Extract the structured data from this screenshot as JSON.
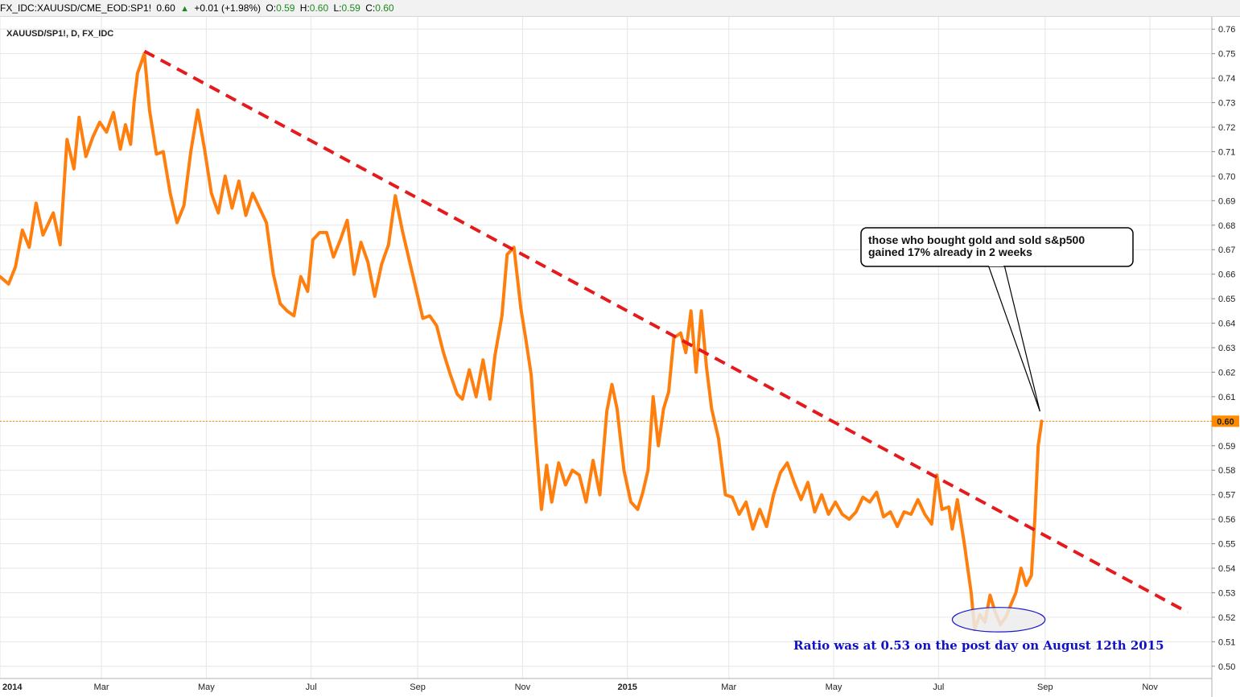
{
  "header": {
    "symbol": "FX_IDC:XAUUSD/CME_EOD:SP1!",
    "last": "0.60",
    "change": "+0.01 (+1.98%)",
    "o_label": "O:",
    "o_value": "0.59",
    "h_label": "H:",
    "h_value": "0.60",
    "l_label": "L:",
    "l_value": "0.59",
    "c_label": "C:",
    "c_value": "0.60"
  },
  "colors": {
    "series": "#ff7f0e",
    "trendline": "#e41a1c",
    "last_price_line": "#ff8c00",
    "grid": "#e6e6e6",
    "annotation_text": "#1010c8",
    "ellipse_stroke": "#1a1acc",
    "ellipse_fill": "#ececec"
  },
  "chart_data": {
    "type": "line",
    "title": "XAUUSD/SP1!, D, FX_IDC",
    "x_ticks": [
      "2014",
      "Mar",
      "May",
      "Jul",
      "Sep",
      "Nov",
      "2015",
      "Mar",
      "May",
      "Jul",
      "Sep",
      "Nov"
    ],
    "x_range": [
      "2014-01-01",
      "2015-12-07"
    ],
    "y_ticks": [
      "0.76",
      "0.75",
      "0.74",
      "0.73",
      "0.72",
      "0.71",
      "0.70",
      "0.69",
      "0.68",
      "0.67",
      "0.66",
      "0.65",
      "0.64",
      "0.63",
      "0.62",
      "0.61",
      "0.60",
      "0.59",
      "0.58",
      "0.57",
      "0.56",
      "0.55",
      "0.54",
      "0.53",
      "0.52",
      "0.51",
      "0.50"
    ],
    "y_range": [
      0.495,
      0.765
    ],
    "last_value": 0.6,
    "last_value_label": "0.60",
    "grid": true,
    "series": [
      {
        "values": [
          [
            "2014-01-01",
            0.659
          ],
          [
            "2014-01-06",
            0.656
          ],
          [
            "2014-01-10",
            0.663
          ],
          [
            "2014-01-14",
            0.678
          ],
          [
            "2014-01-18",
            0.671
          ],
          [
            "2014-01-22",
            0.689
          ],
          [
            "2014-01-26",
            0.676
          ],
          [
            "2014-02-01",
            0.685
          ],
          [
            "2014-02-05",
            0.672
          ],
          [
            "2014-02-09",
            0.715
          ],
          [
            "2014-02-13",
            0.703
          ],
          [
            "2014-02-16",
            0.724
          ],
          [
            "2014-02-20",
            0.708
          ],
          [
            "2014-02-24",
            0.716
          ],
          [
            "2014-02-28",
            0.722
          ],
          [
            "2014-03-04",
            0.718
          ],
          [
            "2014-03-08",
            0.726
          ],
          [
            "2014-03-12",
            0.711
          ],
          [
            "2014-03-15",
            0.721
          ],
          [
            "2014-03-18",
            0.713
          ],
          [
            "2014-03-20",
            0.73
          ],
          [
            "2014-03-22",
            0.742
          ],
          [
            "2014-03-24",
            0.746
          ],
          [
            "2014-03-26",
            0.75
          ],
          [
            "2014-03-29",
            0.727
          ],
          [
            "2014-04-02",
            0.709
          ],
          [
            "2014-04-06",
            0.71
          ],
          [
            "2014-04-10",
            0.693
          ],
          [
            "2014-04-14",
            0.681
          ],
          [
            "2014-04-18",
            0.688
          ],
          [
            "2014-04-22",
            0.71
          ],
          [
            "2014-04-26",
            0.727
          ],
          [
            "2014-04-30",
            0.711
          ],
          [
            "2014-05-04",
            0.693
          ],
          [
            "2014-05-08",
            0.685
          ],
          [
            "2014-05-12",
            0.7
          ],
          [
            "2014-05-16",
            0.687
          ],
          [
            "2014-05-20",
            0.698
          ],
          [
            "2014-05-24",
            0.684
          ],
          [
            "2014-05-28",
            0.693
          ],
          [
            "2014-06-01",
            0.687
          ],
          [
            "2014-06-05",
            0.681
          ],
          [
            "2014-06-09",
            0.66
          ],
          [
            "2014-06-13",
            0.648
          ],
          [
            "2014-06-17",
            0.645
          ],
          [
            "2014-06-21",
            0.643
          ],
          [
            "2014-06-25",
            0.659
          ],
          [
            "2014-06-29",
            0.653
          ],
          [
            "2014-07-02",
            0.674
          ],
          [
            "2014-07-06",
            0.677
          ],
          [
            "2014-07-10",
            0.677
          ],
          [
            "2014-07-14",
            0.667
          ],
          [
            "2014-07-18",
            0.674
          ],
          [
            "2014-07-22",
            0.682
          ],
          [
            "2014-07-26",
            0.66
          ],
          [
            "2014-07-30",
            0.673
          ],
          [
            "2014-08-03",
            0.665
          ],
          [
            "2014-08-07",
            0.651
          ],
          [
            "2014-08-11",
            0.664
          ],
          [
            "2014-08-15",
            0.672
          ],
          [
            "2014-08-19",
            0.692
          ],
          [
            "2014-08-23",
            0.678
          ],
          [
            "2014-08-27",
            0.666
          ],
          [
            "2014-08-31",
            0.654
          ],
          [
            "2014-09-04",
            0.642
          ],
          [
            "2014-09-08",
            0.643
          ],
          [
            "2014-09-12",
            0.639
          ],
          [
            "2014-09-16",
            0.628
          ],
          [
            "2014-09-20",
            0.619
          ],
          [
            "2014-09-24",
            0.611
          ],
          [
            "2014-09-27",
            0.609
          ],
          [
            "2014-10-01",
            0.621
          ],
          [
            "2014-10-05",
            0.61
          ],
          [
            "2014-10-09",
            0.625
          ],
          [
            "2014-10-13",
            0.609
          ],
          [
            "2014-10-16",
            0.627
          ],
          [
            "2014-10-20",
            0.643
          ],
          [
            "2014-10-23",
            0.668
          ],
          [
            "2014-10-27",
            0.671
          ],
          [
            "2014-10-31",
            0.646
          ],
          [
            "2014-11-03",
            0.633
          ],
          [
            "2014-11-06",
            0.619
          ],
          [
            "2014-11-09",
            0.59
          ],
          [
            "2014-11-12",
            0.564
          ],
          [
            "2014-11-15",
            0.582
          ],
          [
            "2014-11-18",
            0.567
          ],
          [
            "2014-11-22",
            0.583
          ],
          [
            "2014-11-26",
            0.574
          ],
          [
            "2014-11-30",
            0.58
          ],
          [
            "2014-12-04",
            0.578
          ],
          [
            "2014-12-08",
            0.567
          ],
          [
            "2014-12-12",
            0.584
          ],
          [
            "2014-12-16",
            0.57
          ],
          [
            "2014-12-20",
            0.604
          ],
          [
            "2014-12-23",
            0.615
          ],
          [
            "2014-12-26",
            0.605
          ],
          [
            "2014-12-30",
            0.58
          ],
          [
            "2015-01-03",
            0.567
          ],
          [
            "2015-01-07",
            0.564
          ],
          [
            "2015-01-10",
            0.571
          ],
          [
            "2015-01-13",
            0.58
          ],
          [
            "2015-01-16",
            0.61
          ],
          [
            "2015-01-19",
            0.59
          ],
          [
            "2015-01-22",
            0.605
          ],
          [
            "2015-01-25",
            0.612
          ],
          [
            "2015-01-28",
            0.634
          ],
          [
            "2015-02-01",
            0.636
          ],
          [
            "2015-02-04",
            0.628
          ],
          [
            "2015-02-07",
            0.645
          ],
          [
            "2015-02-10",
            0.62
          ],
          [
            "2015-02-13",
            0.645
          ],
          [
            "2015-02-16",
            0.622
          ],
          [
            "2015-02-19",
            0.605
          ],
          [
            "2015-02-23",
            0.593
          ],
          [
            "2015-02-27",
            0.57
          ],
          [
            "2015-03-03",
            0.569
          ],
          [
            "2015-03-07",
            0.562
          ],
          [
            "2015-03-11",
            0.567
          ],
          [
            "2015-03-15",
            0.556
          ],
          [
            "2015-03-19",
            0.564
          ],
          [
            "2015-03-23",
            0.557
          ],
          [
            "2015-03-27",
            0.57
          ],
          [
            "2015-03-31",
            0.579
          ],
          [
            "2015-04-04",
            0.583
          ],
          [
            "2015-04-08",
            0.575
          ],
          [
            "2015-04-12",
            0.568
          ],
          [
            "2015-04-16",
            0.575
          ],
          [
            "2015-04-20",
            0.563
          ],
          [
            "2015-04-24",
            0.57
          ],
          [
            "2015-04-28",
            0.562
          ],
          [
            "2015-05-02",
            0.567
          ],
          [
            "2015-05-06",
            0.562
          ],
          [
            "2015-05-10",
            0.56
          ],
          [
            "2015-05-14",
            0.563
          ],
          [
            "2015-05-18",
            0.569
          ],
          [
            "2015-05-22",
            0.567
          ],
          [
            "2015-05-26",
            0.571
          ],
          [
            "2015-05-30",
            0.561
          ],
          [
            "2015-06-03",
            0.563
          ],
          [
            "2015-06-07",
            0.557
          ],
          [
            "2015-06-11",
            0.563
          ],
          [
            "2015-06-15",
            0.562
          ],
          [
            "2015-06-19",
            0.568
          ],
          [
            "2015-06-23",
            0.562
          ],
          [
            "2015-06-27",
            0.558
          ],
          [
            "2015-06-30",
            0.578
          ],
          [
            "2015-07-03",
            0.564
          ],
          [
            "2015-07-07",
            0.565
          ],
          [
            "2015-07-09",
            0.556
          ],
          [
            "2015-07-12",
            0.568
          ],
          [
            "2015-07-16",
            0.55
          ],
          [
            "2015-07-20",
            0.53
          ],
          [
            "2015-07-22",
            0.515
          ],
          [
            "2015-07-25",
            0.521
          ],
          [
            "2015-07-28",
            0.518
          ],
          [
            "2015-07-31",
            0.529
          ],
          [
            "2015-08-03",
            0.522
          ],
          [
            "2015-08-06",
            0.517
          ],
          [
            "2015-08-09",
            0.52
          ],
          [
            "2015-08-12",
            0.525
          ],
          [
            "2015-08-15",
            0.53
          ],
          [
            "2015-08-18",
            0.54
          ],
          [
            "2015-08-21",
            0.533
          ],
          [
            "2015-08-24",
            0.537
          ],
          [
            "2015-08-26",
            0.56
          ],
          [
            "2015-08-28",
            0.59
          ],
          [
            "2015-08-30",
            0.6
          ]
        ]
      }
    ],
    "trendline": {
      "from": [
        "2014-03-26",
        0.751
      ],
      "to": [
        "2015-11-23",
        0.522
      ]
    },
    "ellipse_marker": {
      "center": [
        "2015-08-05",
        0.519
      ],
      "radius_x_days": 27,
      "radius_y": 0.005
    },
    "callout": {
      "line1": "those who bought gold and sold s&p500",
      "line2": "gained 17% already in 2 weeks",
      "pointer_to": [
        "2015-08-29",
        0.604
      ]
    },
    "note": "Ratio was at 0.53 on the post day on August 12th 2015"
  }
}
